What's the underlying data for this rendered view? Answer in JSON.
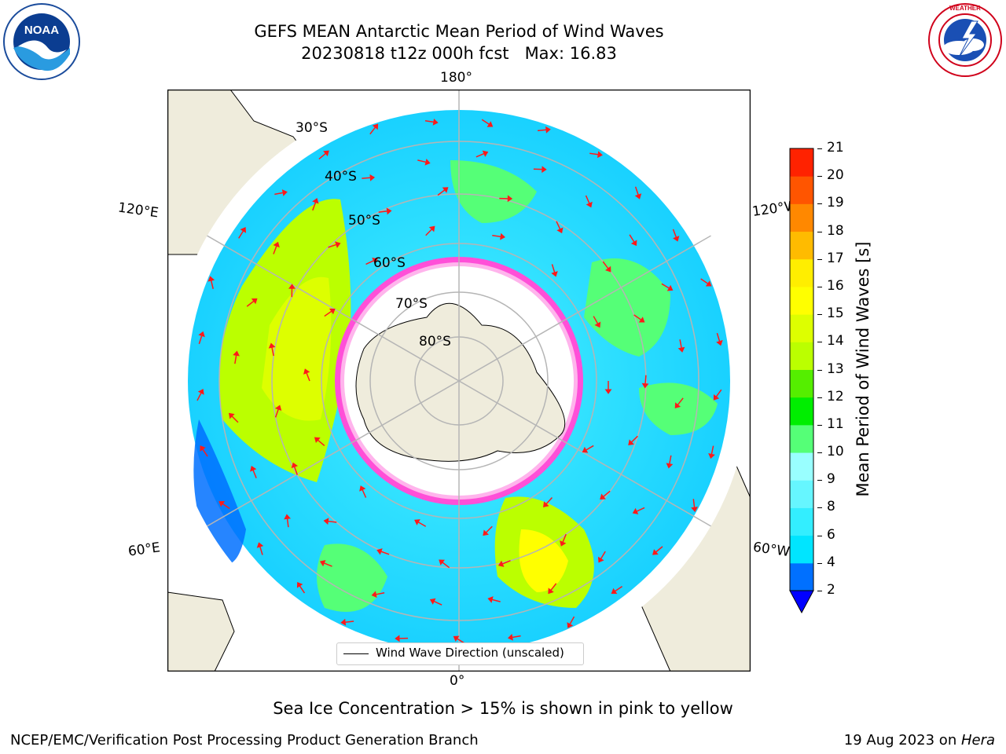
{
  "title": {
    "line1": "GEFS MEAN Antarctic Mean Period of Wind Waves",
    "line2": "20230818 t12z 000h fcst   Max: 16.83"
  },
  "logos": {
    "left": {
      "name": "noaa-logo",
      "text": "NOAA",
      "ring_text": "NATIONAL OCEANIC AND ATMOSPHERIC ADMINISTRATION · U.S. DEPARTMENT OF COMMERCE"
    },
    "right": {
      "name": "nws-logo",
      "ring_text": "NATIONAL WEATHER SERVICE"
    }
  },
  "map": {
    "projection": "south-polar-stereographic",
    "parallel_labels": [
      "30°S",
      "40°S",
      "50°S",
      "60°S",
      "70°S",
      "80°S"
    ],
    "meridian_labels": {
      "top": "180°",
      "bottom": "0°",
      "upper_left": "120°E",
      "upper_right": "120°W",
      "lower_left": "60°E",
      "lower_right": "60°W"
    },
    "legend_label": "Wind Wave Direction (unscaled)",
    "colors": {
      "land": "#efecdc",
      "ocean_nodata": "#ffffff",
      "ice_edge": "#ff4fd8",
      "arrow": "#ff1a1a",
      "grid": "#b5b5b5"
    }
  },
  "colorbar": {
    "label": "Mean Period of Wind Waves [s]",
    "ticks": [
      "2",
      "4",
      "6",
      "8",
      "9",
      "10",
      "11",
      "12",
      "13",
      "14",
      "15",
      "16",
      "17",
      "18",
      "19",
      "20",
      "21"
    ],
    "colors": [
      "#0070ff",
      "#00e5ff",
      "#33eeff",
      "#66f6ff",
      "#99ffff",
      "#55ff77",
      "#00ee00",
      "#55ee00",
      "#bbff00",
      "#ddff00",
      "#ffff00",
      "#ffee00",
      "#ffbb00",
      "#ff8800",
      "#ff5500",
      "#ff2200"
    ],
    "extend_min_color": "#0000ff"
  },
  "note": "Sea Ice Concentration > 15% is shown in pink to yellow",
  "footer": {
    "left": "NCEP/EMC/Verification Post Processing Product Generation Branch",
    "right_prefix": "19 Aug 2023 on ",
    "right_machine": "Hera"
  }
}
